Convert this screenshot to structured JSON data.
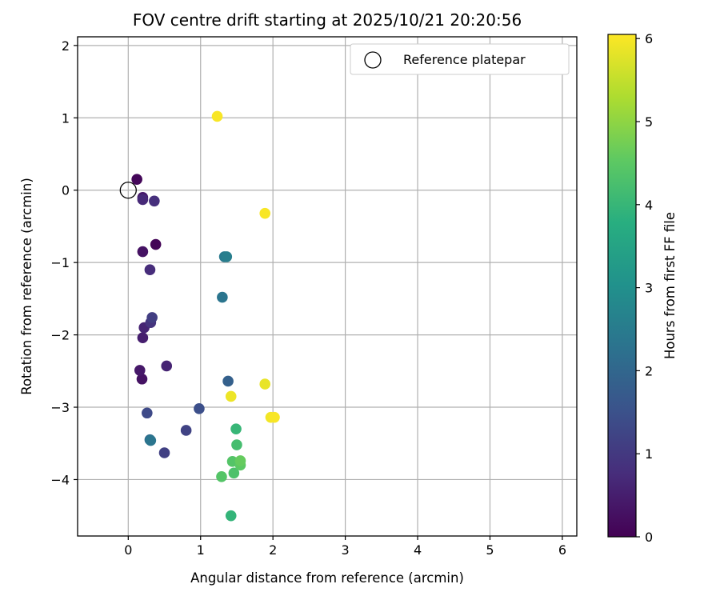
{
  "chart_data": {
    "type": "scatter",
    "title": "FOV centre drift starting at 2025/10/21 20:20:56",
    "xlabel": "Angular distance from reference (arcmin)",
    "ylabel": "Rotation from reference (arcmin)",
    "xlim": [
      -0.7,
      6.2
    ],
    "ylim": [
      -4.78,
      2.12
    ],
    "xticks": [
      0,
      1,
      2,
      3,
      4,
      5,
      6
    ],
    "yticks": [
      -4,
      -3,
      -2,
      -1,
      0,
      1,
      2
    ],
    "xtick_labels": [
      "0",
      "1",
      "2",
      "3",
      "4",
      "5",
      "6"
    ],
    "ytick_labels": [
      "−4",
      "−3",
      "−2",
      "−1",
      "0",
      "1",
      "2"
    ],
    "grid": true,
    "colormap": "viridis",
    "colorbar": {
      "label": "Hours from first FF file",
      "range": [
        0,
        6.05
      ],
      "ticks": [
        0,
        1,
        2,
        3,
        4,
        5,
        6
      ],
      "tick_labels": [
        "0",
        "1",
        "2",
        "3",
        "4",
        "5",
        "6"
      ]
    },
    "legend": {
      "location": "top-right",
      "entries": [
        {
          "label": "Reference platepar",
          "marker": "open-circle"
        }
      ]
    },
    "reference_point": {
      "x": 0,
      "y": 0
    },
    "points": [
      {
        "x": 0.38,
        "y": -0.75,
        "hours": 0.05
      },
      {
        "x": 0.12,
        "y": 0.15,
        "hours": 0.1
      },
      {
        "x": 0.2,
        "y": -0.85,
        "hours": 0.3
      },
      {
        "x": 0.19,
        "y": -2.61,
        "hours": 0.3
      },
      {
        "x": 0.16,
        "y": -2.49,
        "hours": 0.4
      },
      {
        "x": 0.2,
        "y": -0.1,
        "hours": 0.4
      },
      {
        "x": 0.2,
        "y": -2.04,
        "hours": 0.5
      },
      {
        "x": 0.22,
        "y": -1.9,
        "hours": 0.6
      },
      {
        "x": 0.53,
        "y": -2.43,
        "hours": 0.6
      },
      {
        "x": 0.2,
        "y": -0.13,
        "hours": 0.7
      },
      {
        "x": 0.3,
        "y": -1.1,
        "hours": 0.75
      },
      {
        "x": 0.36,
        "y": -0.15,
        "hours": 0.8
      },
      {
        "x": 0.31,
        "y": -1.83,
        "hours": 0.9
      },
      {
        "x": 0.33,
        "y": -1.76,
        "hours": 1.1
      },
      {
        "x": 0.5,
        "y": -3.63,
        "hours": 1.15
      },
      {
        "x": 0.8,
        "y": -3.32,
        "hours": 1.2
      },
      {
        "x": 0.26,
        "y": -3.08,
        "hours": 1.35
      },
      {
        "x": 0.98,
        "y": -3.02,
        "hours": 1.45
      },
      {
        "x": 1.38,
        "y": -2.64,
        "hours": 1.85
      },
      {
        "x": 0.3,
        "y": -3.45,
        "hours": 2.1
      },
      {
        "x": 0.31,
        "y": -3.46,
        "hours": 2.35
      },
      {
        "x": 1.3,
        "y": -1.48,
        "hours": 2.35
      },
      {
        "x": 1.33,
        "y": -0.92,
        "hours": 2.45
      },
      {
        "x": 1.36,
        "y": -0.92,
        "hours": 2.55
      },
      {
        "x": 1.49,
        "y": -3.3,
        "hours": 4.0
      },
      {
        "x": 1.42,
        "y": -4.5,
        "hours": 3.95
      },
      {
        "x": 1.5,
        "y": -3.52,
        "hours": 4.2
      },
      {
        "x": 1.46,
        "y": -3.91,
        "hours": 4.3
      },
      {
        "x": 1.29,
        "y": -3.96,
        "hours": 4.4
      },
      {
        "x": 1.44,
        "y": -3.75,
        "hours": 4.4
      },
      {
        "x": 1.55,
        "y": -3.8,
        "hours": 4.5
      },
      {
        "x": 1.55,
        "y": -3.74,
        "hours": 4.6
      },
      {
        "x": 1.89,
        "y": -2.68,
        "hours": 5.85
      },
      {
        "x": 1.42,
        "y": -2.85,
        "hours": 5.9
      },
      {
        "x": 1.97,
        "y": -3.14,
        "hours": 5.95
      },
      {
        "x": 2.02,
        "y": -3.14,
        "hours": 6.0
      },
      {
        "x": 1.89,
        "y": -0.32,
        "hours": 6.0
      },
      {
        "x": 1.23,
        "y": 1.02,
        "hours": 6.0
      }
    ]
  }
}
